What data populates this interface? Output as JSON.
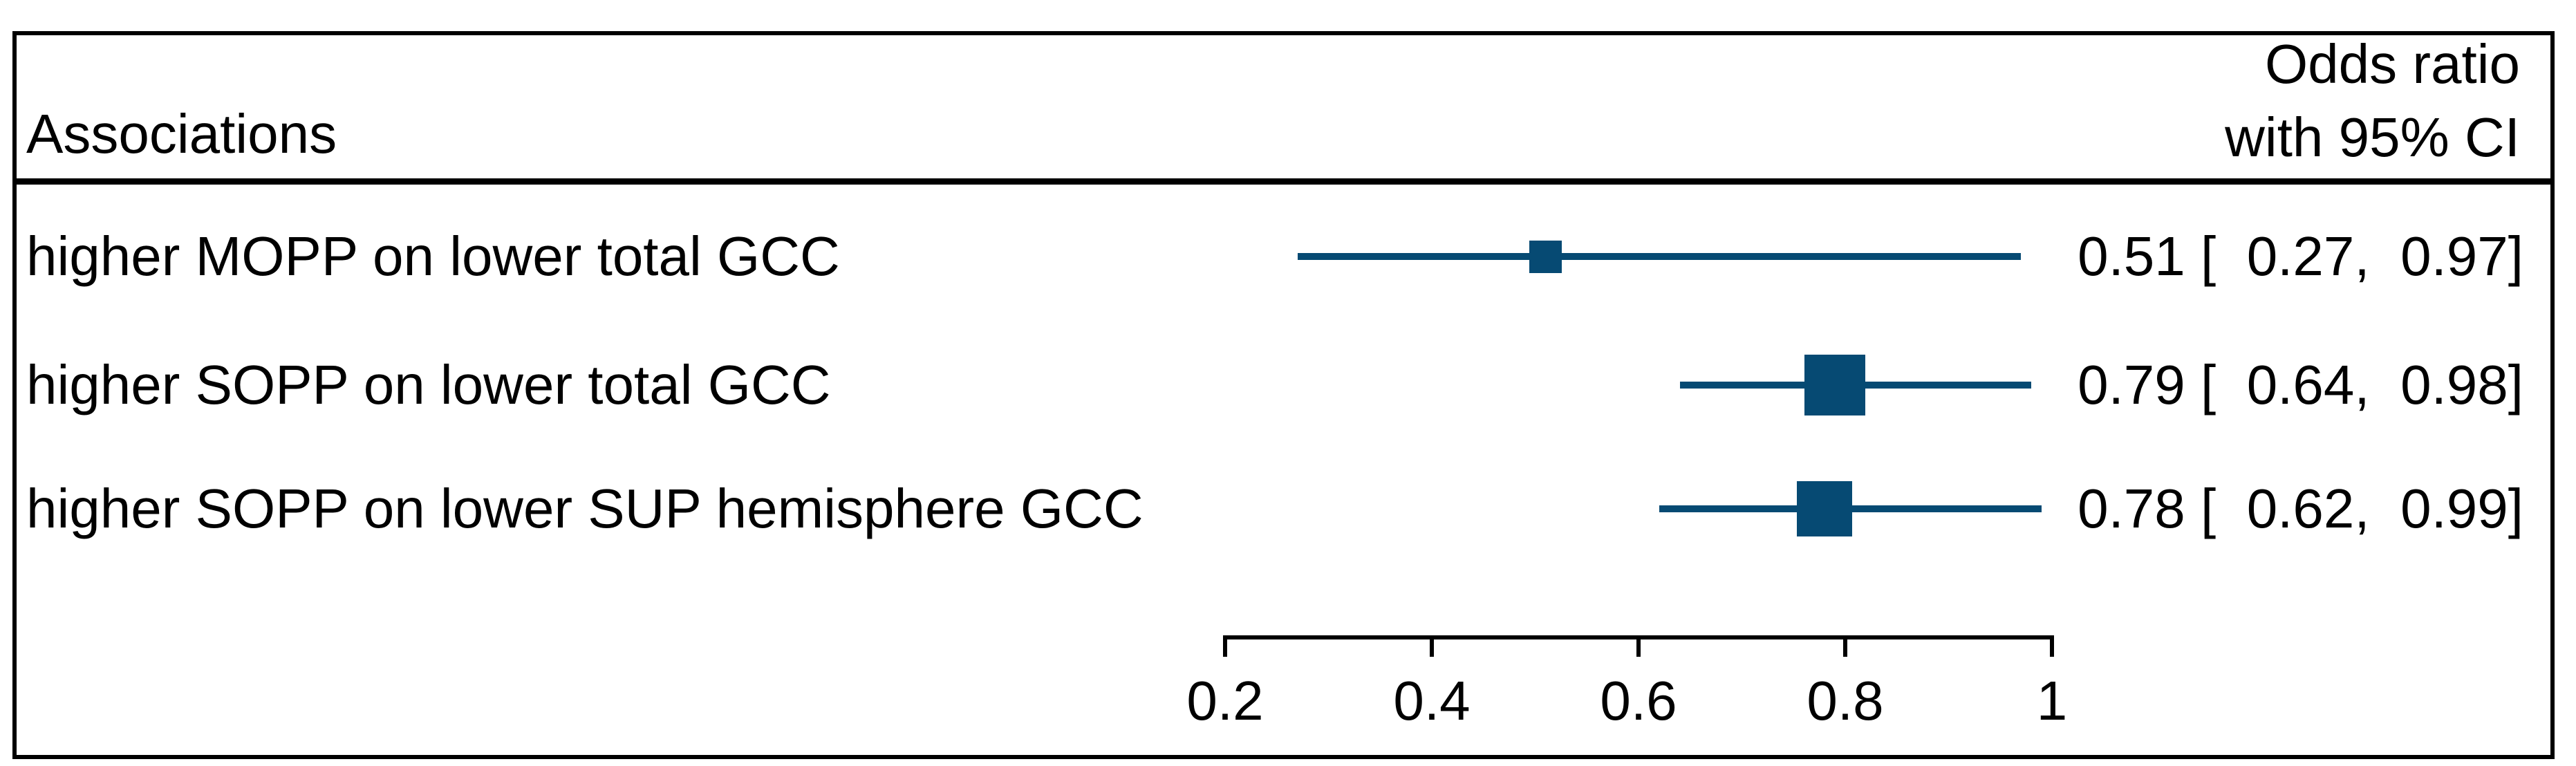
{
  "header": {
    "column_left": "Associations",
    "column_right_line1": "Odds ratio",
    "column_right_line2": "with 95% CI"
  },
  "chart_data": {
    "type": "forest",
    "effect_measure": "Odds ratio with 95% CI",
    "orientation": "horizontal",
    "scale": "linear",
    "x_axis": {
      "range": [
        0.2,
        1
      ],
      "ticks": [
        0.2,
        0.4,
        0.6,
        0.8,
        1
      ],
      "tick_labels": [
        "0.2",
        "0.4",
        "0.6",
        "0.8",
        "1"
      ],
      "grid": false
    },
    "rows": [
      {
        "label": "higher MOPP on lower total GCC",
        "or": 0.51,
        "ci_low": 0.27,
        "ci_high": 0.97,
        "estimate_text": "0.51 [  0.27,  0.97]",
        "marker_px": 47
      },
      {
        "label": "higher SOPP on lower total GCC",
        "or": 0.79,
        "ci_low": 0.64,
        "ci_high": 0.98,
        "estimate_text": "0.79 [  0.64,  0.98]",
        "marker_px": 88
      },
      {
        "label": "higher SOPP on lower SUP hemisphere GCC",
        "or": 0.78,
        "ci_low": 0.62,
        "ci_high": 0.99,
        "estimate_text": "0.78 [  0.62,  0.99]",
        "marker_px": 80
      }
    ],
    "colors": {
      "marker": "#064a73",
      "ci_line": "#064a73",
      "text": "#000000",
      "frame": "#000000"
    }
  }
}
